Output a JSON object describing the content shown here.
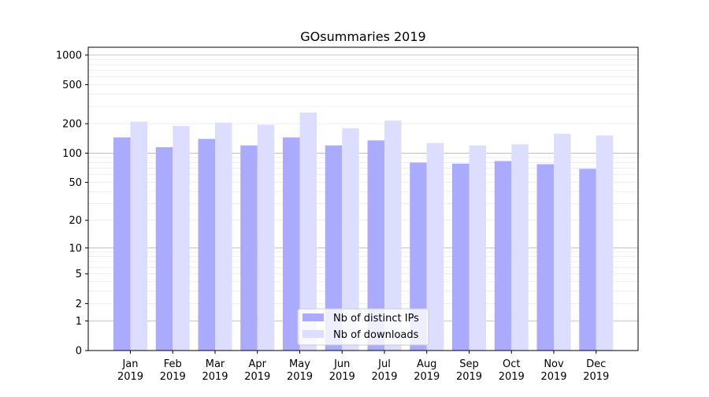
{
  "chart_data": {
    "type": "bar",
    "title": "GOsummaries 2019",
    "xlabel": "",
    "ylabel": "",
    "yscale": "log1p",
    "ylim": [
      0,
      1200
    ],
    "yticks": [
      0,
      1,
      2,
      5,
      10,
      20,
      50,
      100,
      200,
      500,
      1000
    ],
    "ytick_labels": [
      "0",
      "1",
      "2",
      "5",
      "10",
      "20",
      "50",
      "100",
      "200",
      "500",
      "1000"
    ],
    "grid": true,
    "legend_position": "bottom-center",
    "categories": [
      [
        "Jan",
        "2019"
      ],
      [
        "Feb",
        "2019"
      ],
      [
        "Mar",
        "2019"
      ],
      [
        "Apr",
        "2019"
      ],
      [
        "May",
        "2019"
      ],
      [
        "Jun",
        "2019"
      ],
      [
        "Jul",
        "2019"
      ],
      [
        "Aug",
        "2019"
      ],
      [
        "Sep",
        "2019"
      ],
      [
        "Oct",
        "2019"
      ],
      [
        "Nov",
        "2019"
      ],
      [
        "Dec",
        "2019"
      ]
    ],
    "series": [
      {
        "name": "Nb of distinct IPs",
        "color": "#aaaaff",
        "values": [
          145,
          115,
          140,
          120,
          145,
          120,
          135,
          80,
          78,
          83,
          77,
          69
        ]
      },
      {
        "name": "Nb of downloads",
        "color": "#ddddff",
        "values": [
          210,
          190,
          205,
          195,
          260,
          180,
          215,
          127,
          120,
          123,
          158,
          152
        ]
      }
    ]
  }
}
